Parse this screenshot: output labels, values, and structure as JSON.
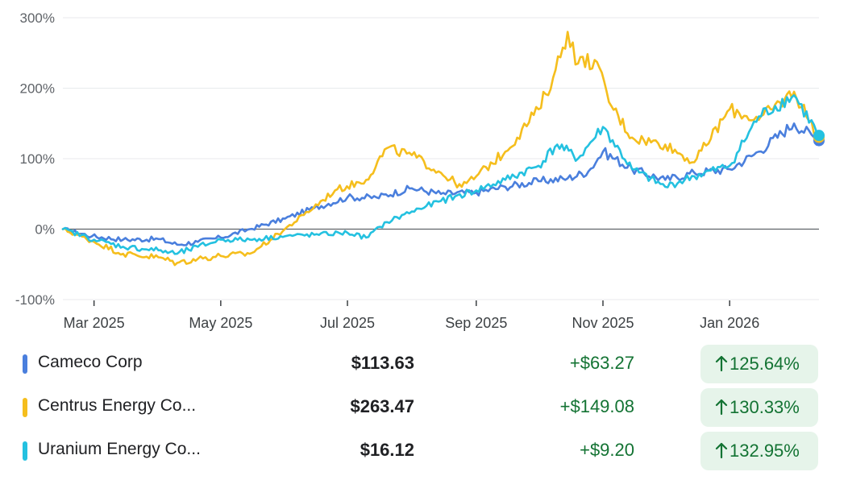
{
  "chart_data": {
    "type": "line",
    "y_unit": "%",
    "ylim": [
      -100,
      300
    ],
    "y_ticks": [
      300,
      200,
      100,
      0,
      -100
    ],
    "y_tick_labels": [
      "300%",
      "200%",
      "100%",
      "0%",
      "-100%"
    ],
    "x_range": [
      "2025-02-14",
      "2026-02-13"
    ],
    "x_ticks": [
      {
        "date": "2025-03-01",
        "label": "Mar 2025"
      },
      {
        "date": "2025-05-01",
        "label": "May 2025"
      },
      {
        "date": "2025-07-01",
        "label": "Jul 2025"
      },
      {
        "date": "2025-09-01",
        "label": "Sep 2025"
      },
      {
        "date": "2025-11-01",
        "label": "Nov 2025"
      },
      {
        "date": "2026-01-01",
        "label": "Jan 2026"
      }
    ],
    "baseline": 0,
    "grid": true,
    "series": [
      {
        "name": "Cameco Corp",
        "color": "#4a7fdd",
        "points": [
          [
            "2025-02-14",
            0
          ],
          [
            "2025-02-28",
            -10
          ],
          [
            "2025-03-15",
            -15
          ],
          [
            "2025-04-01",
            -14
          ],
          [
            "2025-04-10",
            -22
          ],
          [
            "2025-04-20",
            -18
          ],
          [
            "2025-05-01",
            -12
          ],
          [
            "2025-05-15",
            0
          ],
          [
            "2025-06-01",
            15
          ],
          [
            "2025-06-15",
            30
          ],
          [
            "2025-07-01",
            45
          ],
          [
            "2025-07-15",
            45
          ],
          [
            "2025-08-01",
            58
          ],
          [
            "2025-08-15",
            50
          ],
          [
            "2025-09-01",
            52
          ],
          [
            "2025-09-15",
            60
          ],
          [
            "2025-10-01",
            68
          ],
          [
            "2025-10-15",
            72
          ],
          [
            "2025-10-25",
            82
          ],
          [
            "2025-11-01",
            110
          ],
          [
            "2025-11-15",
            85
          ],
          [
            "2025-12-01",
            70
          ],
          [
            "2025-12-15",
            80
          ],
          [
            "2026-01-01",
            85
          ],
          [
            "2026-01-15",
            110
          ],
          [
            "2026-02-01",
            150
          ],
          [
            "2026-02-13",
            125.64
          ]
        ]
      },
      {
        "name": "Centrus Energy Co...",
        "color": "#f5be1d",
        "points": [
          [
            "2025-02-14",
            0
          ],
          [
            "2025-03-01",
            -18
          ],
          [
            "2025-03-15",
            -35
          ],
          [
            "2025-04-01",
            -40
          ],
          [
            "2025-04-10",
            -48
          ],
          [
            "2025-04-20",
            -42
          ],
          [
            "2025-05-01",
            -38
          ],
          [
            "2025-05-15",
            -35
          ],
          [
            "2025-05-25",
            -15
          ],
          [
            "2025-06-10",
            20
          ],
          [
            "2025-06-25",
            55
          ],
          [
            "2025-07-10",
            70
          ],
          [
            "2025-07-20",
            115
          ],
          [
            "2025-08-01",
            105
          ],
          [
            "2025-08-15",
            80
          ],
          [
            "2025-08-25",
            60
          ],
          [
            "2025-09-01",
            75
          ],
          [
            "2025-09-15",
            110
          ],
          [
            "2025-10-01",
            170
          ],
          [
            "2025-10-08",
            215
          ],
          [
            "2025-10-15",
            280
          ],
          [
            "2025-10-20",
            235
          ],
          [
            "2025-10-28",
            240
          ],
          [
            "2025-11-05",
            175
          ],
          [
            "2025-11-15",
            130
          ],
          [
            "2025-12-01",
            120
          ],
          [
            "2025-12-15",
            95
          ],
          [
            "2026-01-01",
            170
          ],
          [
            "2026-01-15",
            155
          ],
          [
            "2026-02-01",
            195
          ],
          [
            "2026-02-13",
            130.33
          ]
        ]
      },
      {
        "name": "Uranium Energy Co...",
        "color": "#24c1e0",
        "points": [
          [
            "2025-02-14",
            0
          ],
          [
            "2025-03-01",
            -15
          ],
          [
            "2025-03-15",
            -25
          ],
          [
            "2025-04-01",
            -30
          ],
          [
            "2025-04-10",
            -35
          ],
          [
            "2025-04-20",
            -25
          ],
          [
            "2025-05-01",
            -15
          ],
          [
            "2025-05-15",
            -15
          ],
          [
            "2025-06-01",
            -10
          ],
          [
            "2025-06-15",
            -8
          ],
          [
            "2025-07-01",
            -5
          ],
          [
            "2025-07-10",
            -12
          ],
          [
            "2025-07-20",
            10
          ],
          [
            "2025-08-01",
            25
          ],
          [
            "2025-08-15",
            40
          ],
          [
            "2025-09-01",
            55
          ],
          [
            "2025-09-15",
            70
          ],
          [
            "2025-10-01",
            90
          ],
          [
            "2025-10-10",
            120
          ],
          [
            "2025-10-20",
            100
          ],
          [
            "2025-11-01",
            145
          ],
          [
            "2025-11-15",
            85
          ],
          [
            "2025-12-01",
            60
          ],
          [
            "2025-12-15",
            75
          ],
          [
            "2026-01-01",
            90
          ],
          [
            "2026-01-15",
            160
          ],
          [
            "2026-02-01",
            190
          ],
          [
            "2026-02-13",
            132.95
          ]
        ]
      }
    ]
  },
  "legend": [
    {
      "name": "Cameco Corp",
      "color": "#4a7fdd",
      "price": "$113.63",
      "change": "+$63.27",
      "pct": "125.64%"
    },
    {
      "name": "Centrus Energy Co...",
      "color": "#f5be1d",
      "price": "$263.47",
      "change": "+$149.08",
      "pct": "130.33%"
    },
    {
      "name": "Uranium Energy Co...",
      "color": "#24c1e0",
      "price": "$16.12",
      "change": "+$9.20",
      "pct": "132.95%"
    }
  ],
  "colors": {
    "positive": "#137333",
    "positive_bg": "#e6f4ea",
    "baseline": "#5f6368",
    "grid": "#e8eaed"
  }
}
